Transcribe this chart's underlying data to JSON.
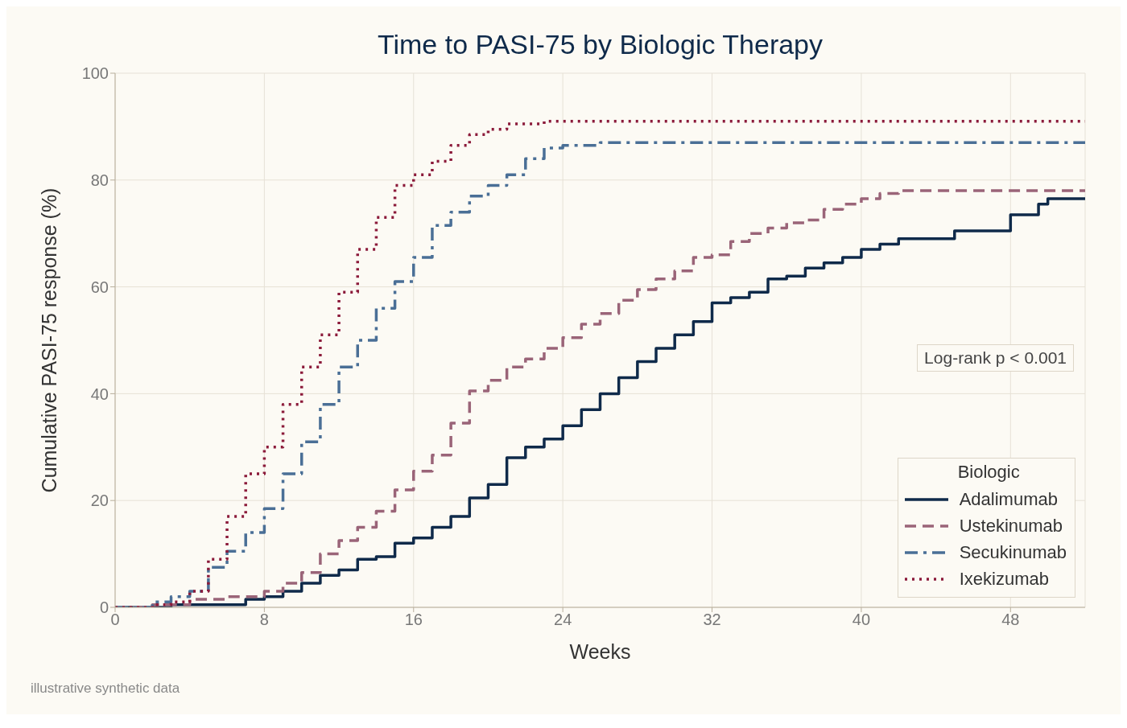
{
  "chart_data": {
    "type": "step",
    "title": "Time to PASI-75 by Biologic Therapy",
    "xlabel": "Weeks",
    "ylabel": "Cumulative PASI-75 response (%)",
    "legend_title": "Biologic",
    "legend": "bottom right",
    "grid": true,
    "xlim": [
      0,
      52
    ],
    "xticks": [
      0,
      8,
      16,
      24,
      32,
      40,
      48
    ],
    "ylim": [
      0,
      100
    ],
    "yticks": [
      0,
      20,
      40,
      60,
      80,
      100
    ],
    "annotations": [
      "Log-rank p < 0.001",
      "illustrative synthetic data"
    ],
    "series": [
      {
        "name": "Adalimumab",
        "color": "#0f2a4a",
        "line_style": "solid",
        "x": [
          0,
          3,
          6.5,
          7,
          8,
          9,
          10,
          11,
          12,
          13,
          14,
          15,
          16,
          17,
          18,
          19,
          20,
          21,
          22,
          23,
          24,
          25,
          26,
          27,
          28,
          29,
          30,
          31,
          32,
          33,
          34,
          35,
          36,
          37,
          38,
          39,
          40,
          41,
          42,
          45,
          47,
          48,
          49.5,
          50,
          52
        ],
        "values": [
          0,
          0.5,
          0.5,
          1.5,
          2,
          3,
          4.5,
          6,
          7,
          9,
          9.5,
          12,
          13,
          15,
          17,
          20.5,
          23,
          28,
          30,
          31.5,
          34,
          37,
          40,
          43,
          46,
          48.5,
          51,
          53.5,
          57,
          58,
          59,
          61.5,
          62,
          63.5,
          64.5,
          65.5,
          67,
          68,
          69,
          70.5,
          70.5,
          73.5,
          75.5,
          76.5,
          76.5
        ]
      },
      {
        "name": "Ustekinumab",
        "color": "#9a6478",
        "line_style": "dashed",
        "x": [
          0,
          2,
          4,
          6,
          8,
          9,
          10,
          11,
          12,
          13,
          14,
          15,
          16,
          17,
          18,
          19,
          20,
          21,
          22,
          23,
          24,
          25,
          26,
          27,
          28,
          29,
          30,
          31,
          32,
          33,
          34,
          35,
          36,
          37,
          38,
          39,
          40,
          41,
          42,
          52
        ],
        "values": [
          0,
          0.5,
          1.5,
          2,
          3,
          4.5,
          6.5,
          10,
          12.5,
          15,
          18,
          22,
          25.5,
          28.5,
          34.5,
          40.5,
          42.5,
          45,
          46.5,
          48.5,
          50.5,
          53,
          55,
          57.5,
          59.5,
          61.5,
          63,
          65.5,
          66,
          68.5,
          70,
          71,
          72,
          72.5,
          74.5,
          75.5,
          76.5,
          77.5,
          78,
          78
        ]
      },
      {
        "name": "Secukinumab",
        "color": "#4a6f96",
        "line_style": "dashdot",
        "x": [
          0,
          2,
          3,
          4,
          5,
          6,
          7,
          8,
          9,
          10,
          11,
          12,
          13,
          14,
          15,
          16,
          17,
          18,
          19,
          20,
          21,
          22,
          23,
          24,
          26,
          52
        ],
        "values": [
          0,
          1,
          2,
          3,
          7.5,
          10.5,
          14,
          18.5,
          25,
          31,
          38,
          45,
          50,
          56,
          61,
          65.5,
          71.5,
          74,
          77,
          79,
          81,
          84,
          86,
          86.5,
          87,
          87
        ]
      },
      {
        "name": "Ixekizumab",
        "color": "#8b1a3a",
        "line_style": "dotted",
        "x": [
          0,
          2,
          3,
          4,
          5,
          6,
          7,
          8,
          9,
          10,
          11,
          12,
          13,
          14,
          15,
          16,
          17,
          18,
          19,
          20,
          21,
          22,
          23,
          24,
          52
        ],
        "values": [
          0,
          0.5,
          1,
          3,
          9,
          17,
          25,
          30,
          38,
          45,
          51,
          59,
          67,
          73,
          79,
          81,
          83.5,
          86.5,
          88.5,
          89.5,
          90.5,
          90.5,
          91,
          91,
          91
        ]
      }
    ]
  }
}
